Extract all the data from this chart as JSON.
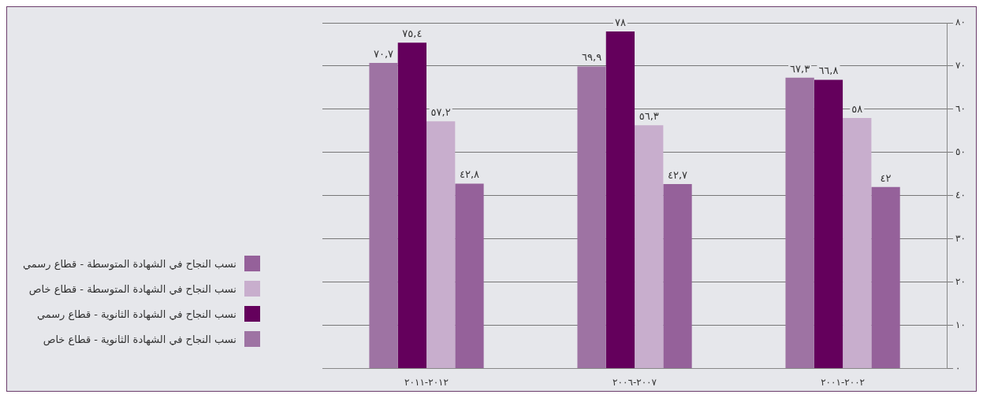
{
  "chart_data": {
    "type": "bar",
    "categories": [
      "٢٠١٢-٢٠١١",
      "٢٠٠٧-٢٠٠٦",
      "٢٠٠٢-٢٠٠١"
    ],
    "series": [
      {
        "name": "نسب النجاح في الشهادة الثانوية - قطاع خاص",
        "color": "#9e73a3",
        "values": [
          70.7,
          69.9,
          67.3
        ],
        "value_labels": [
          "٧٠,٧",
          "٦٩,٩",
          "٦٧,٣"
        ]
      },
      {
        "name": "نسب النجاح في الشهادة الثانوية - قطاع رسمي",
        "color": "#64005c",
        "values": [
          75.4,
          78,
          66.8
        ],
        "value_labels": [
          "٧٥,٤",
          "٧٨",
          "٦٦,٨"
        ]
      },
      {
        "name": "نسب النجاح في الشهادة المتوسطة - قطاع خاص",
        "color": "#c8aecd",
        "values": [
          57.2,
          56.3,
          58
        ],
        "value_labels": [
          "٥٧,٢",
          "٥٦,٣",
          "٥٨"
        ]
      },
      {
        "name": "نسب النجاح في الشهادة المتوسطة - قطاع رسمي",
        "color": "#95619a",
        "values": [
          42.8,
          42.7,
          42
        ],
        "value_labels": [
          "٤٢,٨",
          "٤٢,٧",
          "٤٢"
        ]
      }
    ],
    "ylim": [
      0,
      80
    ],
    "yticks": [
      {
        "value": 0,
        "label": "٠"
      },
      {
        "value": 10,
        "label": "١٠"
      },
      {
        "value": 20,
        "label": "٢٠"
      },
      {
        "value": 30,
        "label": "٣٠"
      },
      {
        "value": 40,
        "label": "٤٠"
      },
      {
        "value": 50,
        "label": "٥٠"
      },
      {
        "value": 60,
        "label": "٦٠"
      },
      {
        "value": 70,
        "label": "٧٠"
      },
      {
        "value": 80,
        "label": "٨٠"
      }
    ],
    "grid": "y",
    "legend": "bottom left"
  }
}
